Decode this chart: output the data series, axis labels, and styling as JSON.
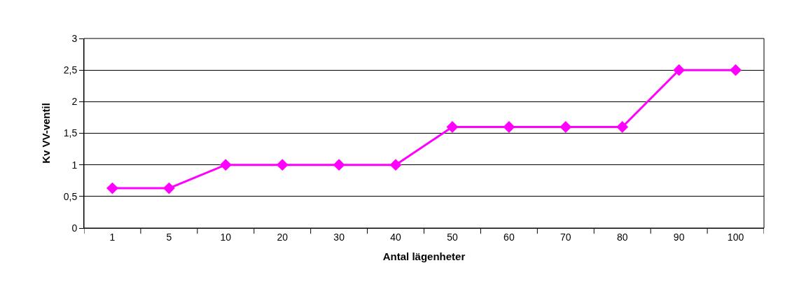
{
  "chart_data": {
    "type": "line",
    "xlabel": "Antal lägenheter",
    "ylabel": "Kv VV-ventil",
    "categories": [
      "1",
      "5",
      "10",
      "20",
      "30",
      "40",
      "50",
      "60",
      "70",
      "80",
      "90",
      "100"
    ],
    "series": [
      {
        "color": "#ff00ff",
        "values": [
          0.63,
          0.63,
          1,
          1,
          1,
          1,
          1.6,
          1.6,
          1.6,
          1.6,
          2.5,
          2.5
        ]
      }
    ],
    "ylim": [
      0,
      3
    ],
    "yticks": [
      0,
      {
        "value": 0.5,
        "label": "0,5"
      },
      1,
      {
        "value": 1.5,
        "label": "1,5"
      },
      2,
      {
        "value": 2.5,
        "label": "2,5"
      },
      3
    ],
    "grid": "y",
    "legend": false,
    "marker": "diamond",
    "line_style": "solid"
  }
}
